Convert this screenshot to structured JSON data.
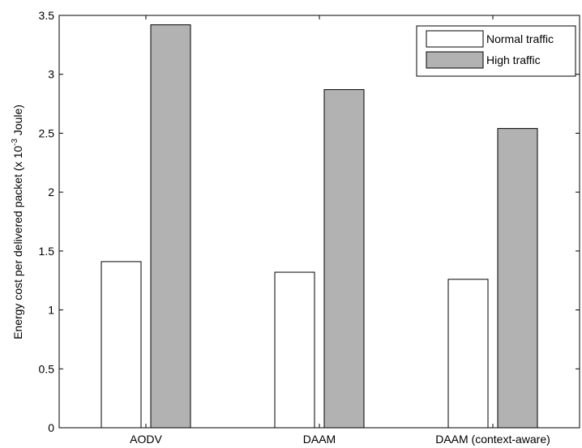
{
  "chart_data": {
    "type": "bar",
    "categories": [
      "AODV",
      "DAAM",
      "DAAM (context-aware)"
    ],
    "series": [
      {
        "name": "Normal traffic",
        "values": [
          1.41,
          1.32,
          1.26
        ],
        "color": "#ffffff"
      },
      {
        "name": "High traffic",
        "values": [
          3.42,
          2.87,
          2.54
        ],
        "color": "#b2b2b2"
      }
    ],
    "ylabel_parts": [
      "Energy cost per delivered packet (x 10",
      "-3",
      " Joule)"
    ],
    "ylim": [
      0,
      3.5
    ],
    "yticks": [
      "0",
      "0.5",
      "1",
      "1.5",
      "2",
      "2.5",
      "3",
      "3.5"
    ],
    "grid": false,
    "legend_position": "top-right"
  }
}
